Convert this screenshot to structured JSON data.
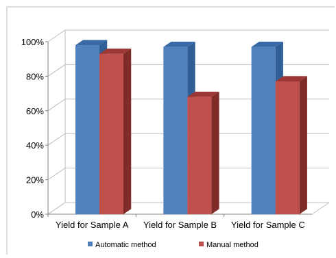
{
  "chart_data": {
    "type": "bar",
    "style": "3d-clustered-column",
    "categories": [
      "Yield for Sample A",
      "Yield for Sample B",
      "Yield for Sample C"
    ],
    "series": [
      {
        "name": "Automatic method",
        "values": [
          98,
          97,
          97
        ],
        "color": "#4F81BD",
        "side_color": "#2F5F95",
        "top_color": "#3A6AA6"
      },
      {
        "name": "Manual method",
        "values": [
          93,
          68,
          77
        ],
        "color": "#C0504D",
        "side_color": "#7F2B28",
        "top_color": "#9B3835"
      }
    ],
    "yticks": [
      "0%",
      "20%",
      "40%",
      "60%",
      "80%",
      "100%"
    ],
    "ylim": [
      0,
      100
    ],
    "grid": true,
    "legend_position": "bottom",
    "title": "",
    "xlabel": "",
    "ylabel": ""
  }
}
